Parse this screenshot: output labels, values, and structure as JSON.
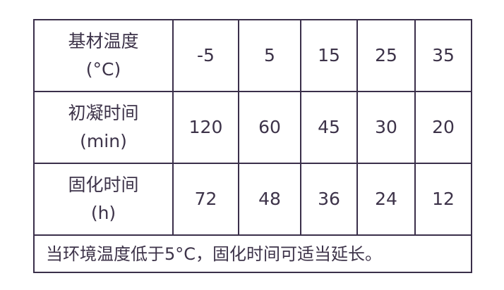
{
  "table": {
    "rows": [
      {
        "label": "基材温度",
        "unit": "(°C)",
        "values": [
          "-5",
          "5",
          "15",
          "25",
          "35"
        ]
      },
      {
        "label": "初凝时间",
        "unit": "(min)",
        "values": [
          "120",
          "60",
          "45",
          "30",
          "20"
        ]
      },
      {
        "label": "固化时间",
        "unit": "(h)",
        "values": [
          "72",
          "48",
          "36",
          "24",
          "12"
        ]
      }
    ],
    "note": "当环境温度低于5°C，固化时间可适当延长。"
  }
}
